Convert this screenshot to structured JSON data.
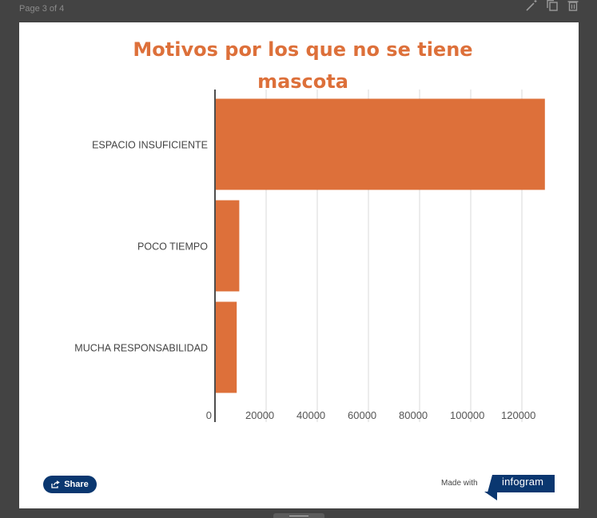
{
  "page": {
    "indicator": "Page 3 of 4"
  },
  "toolbar": {
    "icons": [
      "magic-wand-icon",
      "duplicate-icon",
      "trash-icon"
    ]
  },
  "chart": {
    "title": "Motivos por los que no se tiene mascota"
  },
  "chart_data": {
    "type": "bar",
    "orientation": "horizontal",
    "title": "Motivos por los que no se tiene mascota",
    "categories": [
      "ESPACIO INSUFICIENTE",
      "POCO TIEMPO",
      "MUCHA RESPONSABILIDAD"
    ],
    "values": [
      129000,
      9500,
      8500
    ],
    "xlim": [
      0,
      135000
    ],
    "xticks": [
      0,
      20000,
      40000,
      60000,
      80000,
      100000,
      120000
    ],
    "xtick_labels": [
      "0",
      "20000",
      "40000",
      "60000",
      "80000",
      "100000",
      "120000"
    ],
    "grid": "vertical",
    "legend": "none",
    "xlabel": "",
    "ylabel": "",
    "colors": {
      "bar": "#dd703a",
      "title": "#dd703a",
      "grid": "#d9d9d9",
      "axis": "#222222"
    }
  },
  "footer": {
    "share_label": "Share",
    "made_with": "Made with",
    "brand": "infogram",
    "brand_color": "#0a3770"
  }
}
